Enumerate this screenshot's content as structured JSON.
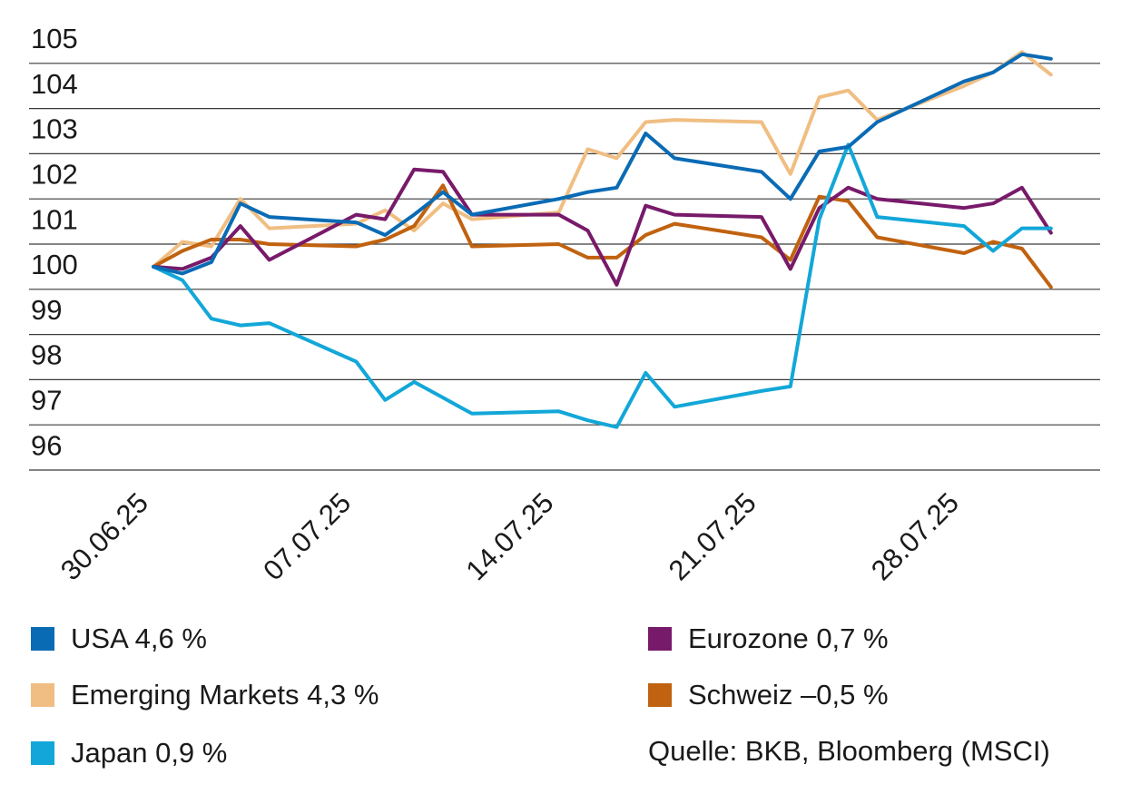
{
  "chart_data": {
    "type": "line",
    "ylim": [
      95.5,
      105.5
    ],
    "yticks": [
      96,
      97,
      98,
      99,
      100,
      101,
      102,
      103,
      104,
      105
    ],
    "xticks": [
      {
        "label": "30.06.25",
        "x": 0
      },
      {
        "label": "07.07.25",
        "x": 7
      },
      {
        "label": "14.07.25",
        "x": 14
      },
      {
        "label": "21.07.25",
        "x": 21
      },
      {
        "label": "28.07.25",
        "x": 28
      }
    ],
    "xlim": [
      -4.3,
      32.7
    ],
    "grid": "horizontal",
    "legend_position": "bottom",
    "source": "Quelle: BKB, Bloomberg (MSCI)",
    "series": [
      {
        "name": "USA 4,6 %",
        "color": "#0a6bb5",
        "x": [
          0,
          1,
          2,
          3,
          4,
          7,
          8,
          9,
          10,
          11,
          14,
          15,
          16,
          17,
          18,
          21,
          22,
          23,
          24,
          25,
          28,
          29,
          30,
          31
        ],
        "y": [
          100.0,
          99.85,
          100.1,
          101.4,
          101.1,
          100.98,
          100.7,
          101.15,
          101.65,
          101.15,
          101.5,
          101.65,
          101.75,
          102.95,
          102.4,
          102.1,
          101.5,
          102.55,
          102.65,
          103.2,
          104.1,
          104.3,
          104.7,
          104.6
        ]
      },
      {
        "name": "Emerging Markets 4,3 %",
        "color": "#f0be82",
        "x": [
          0,
          1,
          2,
          3,
          4,
          7,
          8,
          9,
          10,
          11,
          14,
          15,
          16,
          17,
          18,
          21,
          22,
          23,
          24,
          25,
          28,
          29,
          30,
          31
        ],
        "y": [
          100.0,
          100.55,
          100.45,
          101.5,
          100.85,
          100.95,
          101.25,
          100.8,
          101.4,
          101.05,
          101.2,
          102.6,
          102.4,
          103.2,
          103.25,
          103.2,
          102.05,
          103.75,
          103.9,
          103.25,
          104.0,
          104.3,
          104.75,
          104.25
        ]
      },
      {
        "name": "Japan 0,9 %",
        "color": "#12a7d8",
        "x": [
          0,
          1,
          2,
          3,
          4,
          7,
          8,
          9,
          10,
          11,
          14,
          15,
          16,
          17,
          18,
          21,
          22,
          23,
          24,
          25,
          28,
          29,
          30,
          31
        ],
        "y": [
          100.0,
          99.7,
          98.85,
          98.7,
          98.75,
          97.9,
          97.05,
          97.45,
          97.1,
          96.75,
          96.8,
          96.6,
          96.45,
          97.65,
          96.9,
          97.25,
          97.35,
          101.05,
          102.7,
          101.1,
          100.9,
          100.35,
          100.85,
          100.85
        ]
      },
      {
        "name": "Eurozone 0,7 %",
        "color": "#781a6a",
        "x": [
          0,
          1,
          2,
          3,
          4,
          7,
          8,
          9,
          10,
          11,
          14,
          15,
          16,
          17,
          18,
          21,
          22,
          23,
          24,
          25,
          28,
          29,
          30,
          31
        ],
        "y": [
          100.0,
          99.95,
          100.2,
          100.9,
          100.15,
          101.15,
          101.05,
          102.15,
          102.1,
          101.15,
          101.15,
          100.8,
          99.6,
          101.35,
          101.15,
          101.1,
          99.95,
          101.3,
          101.75,
          101.5,
          101.3,
          101.4,
          101.75,
          100.75
        ]
      },
      {
        "name": "Schweiz –0,5 %",
        "color": "#c0620f",
        "x": [
          0,
          1,
          2,
          3,
          4,
          7,
          8,
          9,
          10,
          11,
          14,
          15,
          16,
          17,
          18,
          21,
          22,
          23,
          24,
          25,
          28,
          29,
          30,
          31
        ],
        "y": [
          100.0,
          100.35,
          100.6,
          100.6,
          100.5,
          100.45,
          100.6,
          100.9,
          101.8,
          100.45,
          100.5,
          100.2,
          100.2,
          100.7,
          100.95,
          100.65,
          100.15,
          101.55,
          101.45,
          100.65,
          100.3,
          100.55,
          100.4,
          99.55
        ]
      }
    ]
  }
}
